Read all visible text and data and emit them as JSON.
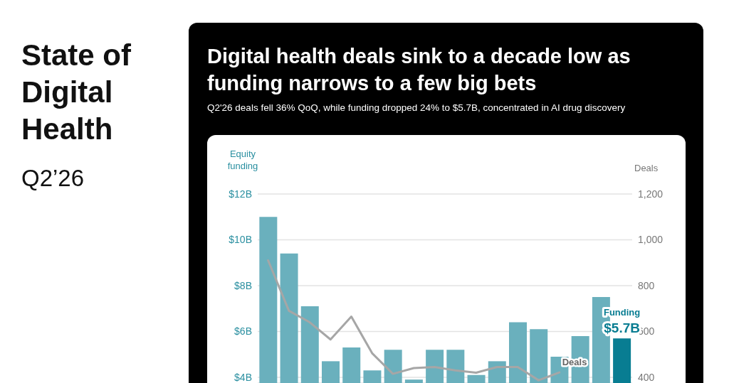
{
  "chart_data": {
    "type": "bar",
    "title": "Digital health deals sink to a decade low as funding narrows to a few big bets",
    "subtitle": "Q2'26 deals fell 36% QoQ, while funding dropped 24% to $5.7B, concentrated in AI drug discovery",
    "annotations": [
      "State of Digital Health",
      "Q2’26"
    ],
    "ylabel": "Equity funding",
    "y2label": "Deals",
    "categories": [
      null,
      null,
      null,
      null,
      null,
      null,
      null,
      null,
      null,
      null,
      null,
      null,
      null,
      null,
      null,
      null,
      null,
      null
    ],
    "series": [
      {
        "name": "Funding",
        "colors": [
          "#6ab0bd",
          "#6ab0bd",
          "#6ab0bd",
          "#6ab0bd",
          "#6ab0bd",
          "#6ab0bd",
          "#6ab0bd",
          "#6ab0bd",
          "#6ab0bd",
          "#6ab0bd",
          "#6ab0bd",
          "#6ab0bd",
          "#6ab0bd",
          "#6ab0bd",
          "#6ab0bd",
          "#6ab0bd",
          "#6ab0bd",
          "#087d92"
        ],
        "values": [
          11.0,
          9.4,
          7.1,
          4.7,
          5.3,
          4.3,
          5.2,
          3.9,
          5.2,
          5.2,
          4.1,
          4.7,
          6.4,
          6.1,
          4.9,
          5.8,
          7.5,
          5.7
        ],
        "value_labels": [
          null,
          null,
          null,
          null,
          null,
          null,
          null,
          null,
          null,
          null,
          null,
          null,
          null,
          null,
          null,
          null,
          null,
          "$5.7B"
        ]
      },
      {
        "type": "line",
        "name": "Deals",
        "color": "#a6a6a6",
        "axis": "y2",
        "values": [
          910,
          690,
          640,
          565,
          665,
          505,
          415,
          440,
          445,
          430,
          420,
          445,
          445,
          387,
          421,
          null,
          null,
          null
        ]
      }
    ],
    "ylim": [
      3.75,
      12
    ],
    "yticks": [
      {
        "value": 4,
        "label": "$4B"
      },
      {
        "value": 6,
        "label": "$6B"
      },
      {
        "value": 8,
        "label": "$8B"
      },
      {
        "value": 10,
        "label": "$10B"
      },
      {
        "value": 12,
        "label": "$12B"
      }
    ],
    "y2lim": [
      375,
      1200
    ],
    "y2ticks": [
      400,
      600,
      800,
      {
        "value": 1000,
        "label": "1,000"
      },
      {
        "value": 1200,
        "label": "1,200"
      }
    ],
    "grid": "y"
  }
}
